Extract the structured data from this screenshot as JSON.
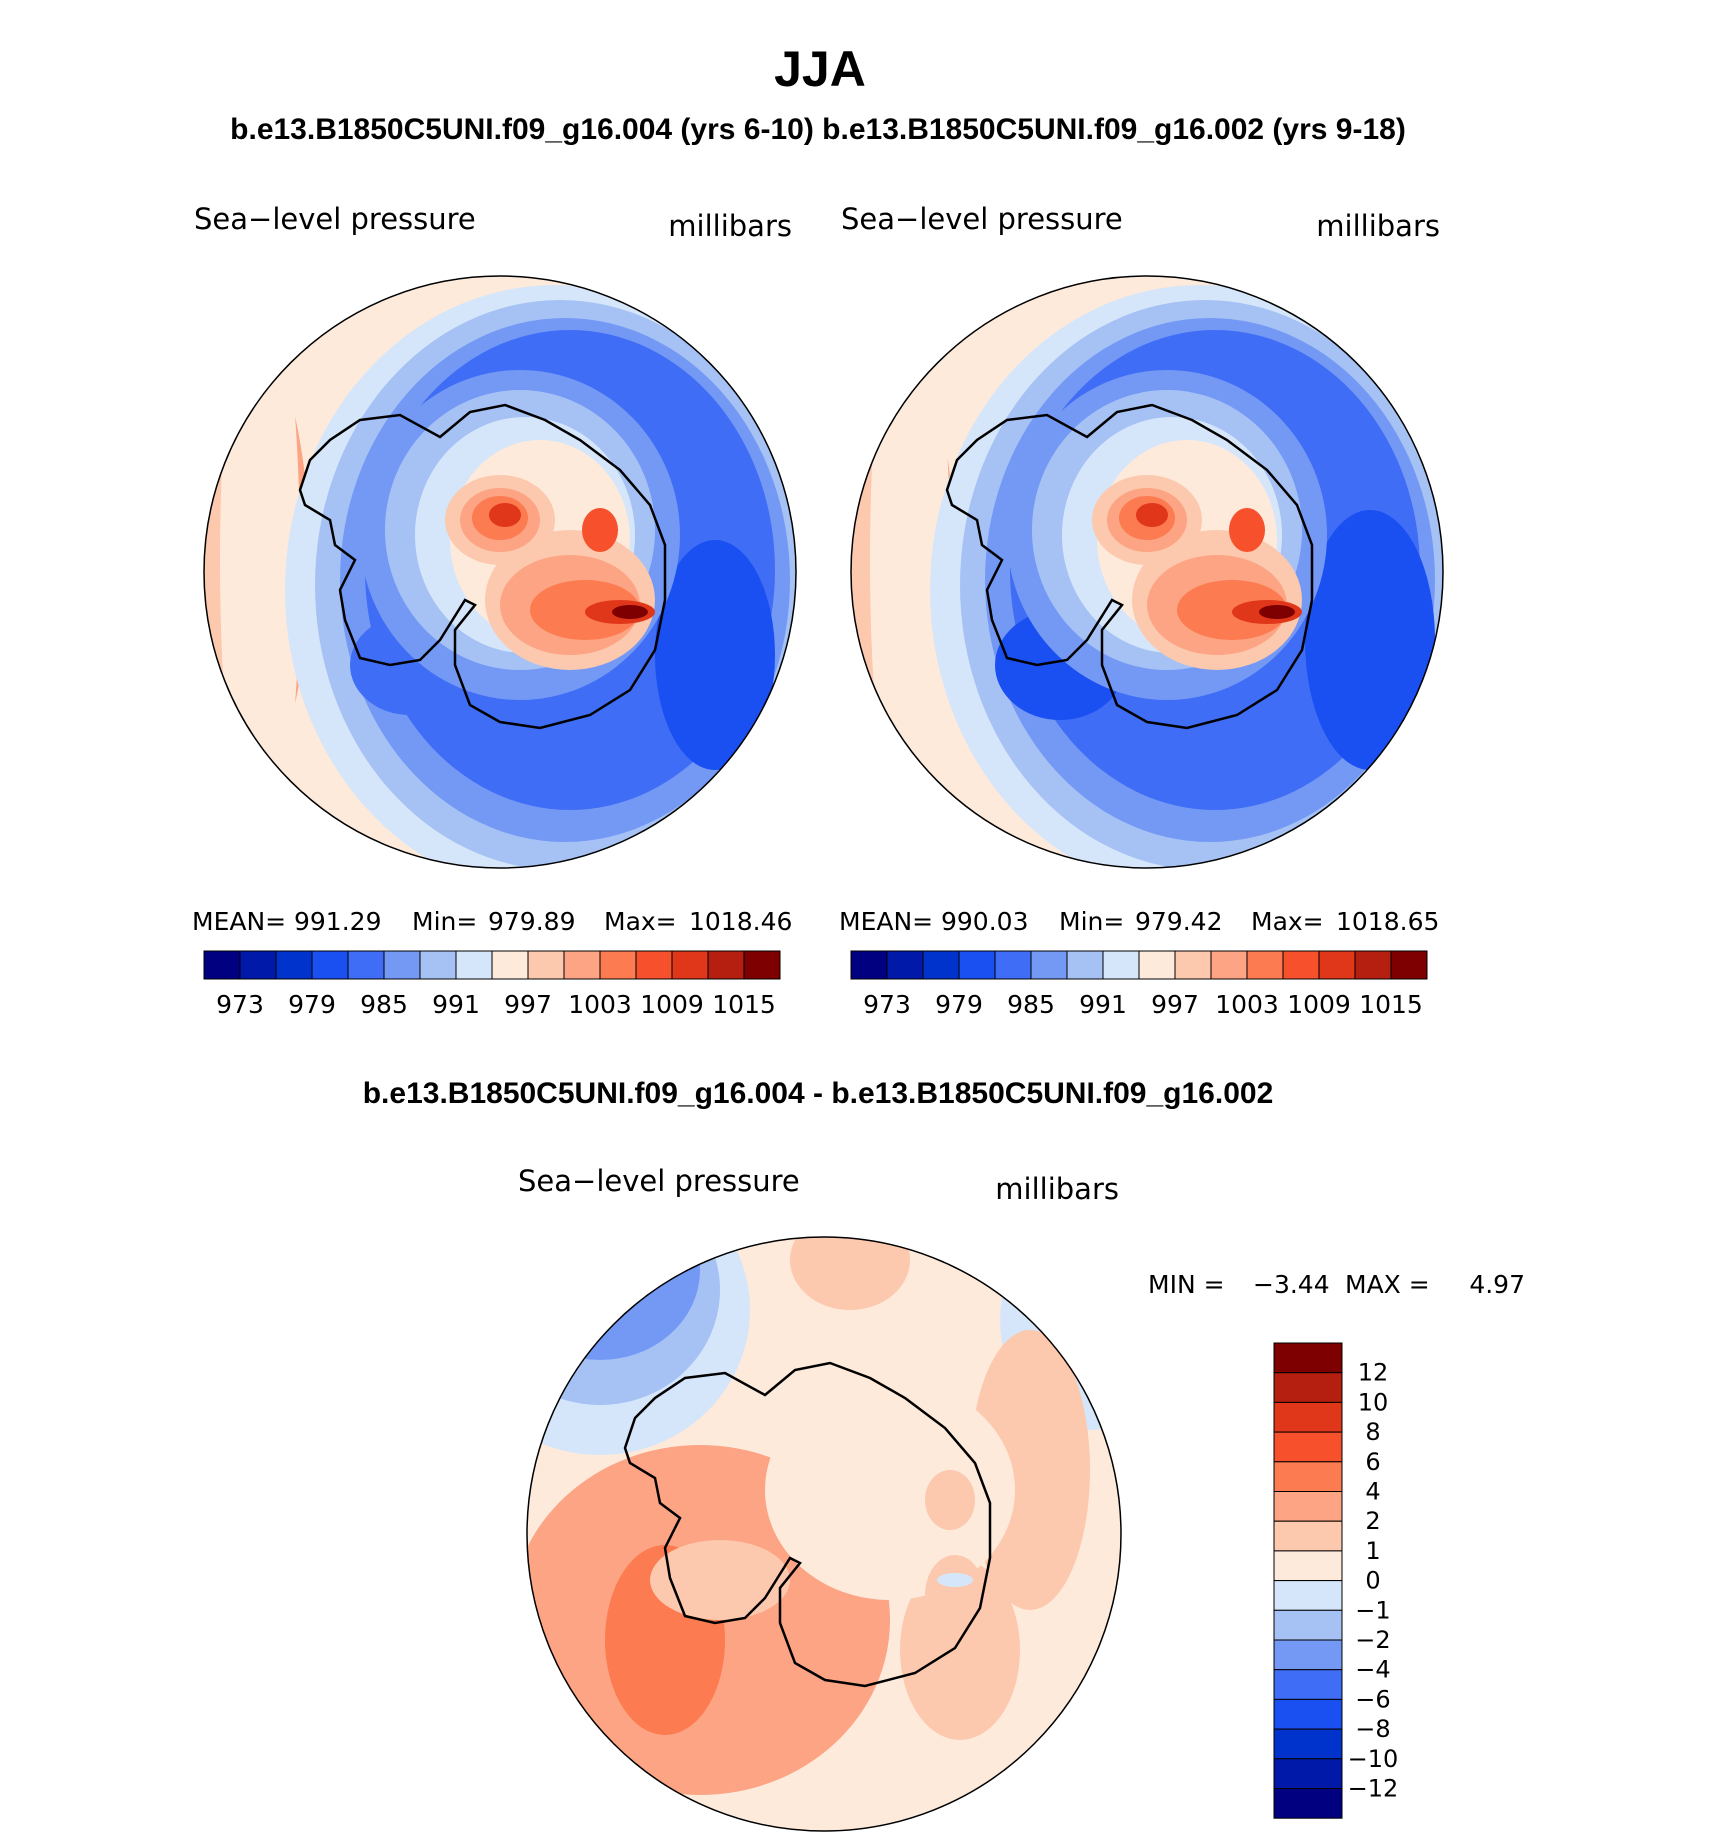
{
  "figure": {
    "season": "JJA",
    "header": "b.e13.B1850C5UNI.f09_g16.004 (yrs 6-10) b.e13.B1850C5UNI.f09_g16.002 (yrs 9-18)",
    "diff_title": "b.e13.B1850C5UNI.f09_g16.004 - b.e13.B1850C5UNI.f09_g16.002"
  },
  "panels": [
    {
      "variable": "Sea−level pressure",
      "units": "millibars",
      "mean_label": "MEAN=",
      "mean": "991.29",
      "min_label": "Min=",
      "min": "979.89",
      "max_label": "Max=",
      "max": "1018.46"
    },
    {
      "variable": "Sea−level pressure",
      "units": "millibars",
      "mean_label": "MEAN=",
      "mean": "990.03",
      "min_label": "Min=",
      "min": "979.42",
      "max_label": "Max=",
      "max": "1018.65"
    }
  ],
  "diff_panel": {
    "variable": "Sea−level pressure",
    "units": "millibars",
    "min_label": "MIN =",
    "min": "−3.44",
    "max_label": "MAX =",
    "max": "4.97"
  },
  "colorbar_abs": {
    "colors": [
      "#000080",
      "#0019a8",
      "#0033cc",
      "#1a4ff2",
      "#3f6df5",
      "#7399f5",
      "#a6c2f5",
      "#d6e6fa",
      "#fdeadb",
      "#fcc8ae",
      "#fca483",
      "#fc7b51",
      "#f7502c",
      "#e0371a",
      "#b41f10",
      "#7e0000"
    ],
    "labels": [
      "973",
      "979",
      "985",
      "991",
      "997",
      "1003",
      "1009",
      "1015"
    ]
  },
  "colorbar_diff": {
    "colors": [
      "#7e0000",
      "#b41f10",
      "#e0371a",
      "#f7502c",
      "#fc7b51",
      "#fca483",
      "#fcc8ae",
      "#fdeadb",
      "#d6e6fa",
      "#a6c2f5",
      "#7399f5",
      "#3f6df5",
      "#1a4ff2",
      "#0033cc",
      "#0019a8",
      "#000080"
    ],
    "labels": [
      "12",
      "10",
      "8",
      "6",
      "4",
      "2",
      "1",
      "0",
      "−1",
      "−2",
      "−4",
      "−6",
      "−8",
      "−10",
      "−12"
    ]
  },
  "map_colors": {
    "blue_deep": "#1a4ff2",
    "blue_mid": "#3f6df5",
    "blue_med": "#7399f5",
    "blue_light": "#a6c2f5",
    "blue_pale": "#d6e6fa",
    "cream": "#fdeadb",
    "peach": "#fcc8ae",
    "salmon": "#fca483",
    "orange": "#fc7b51",
    "red": "#f7502c",
    "dark_red": "#b41f10",
    "maroon": "#7e0000"
  }
}
